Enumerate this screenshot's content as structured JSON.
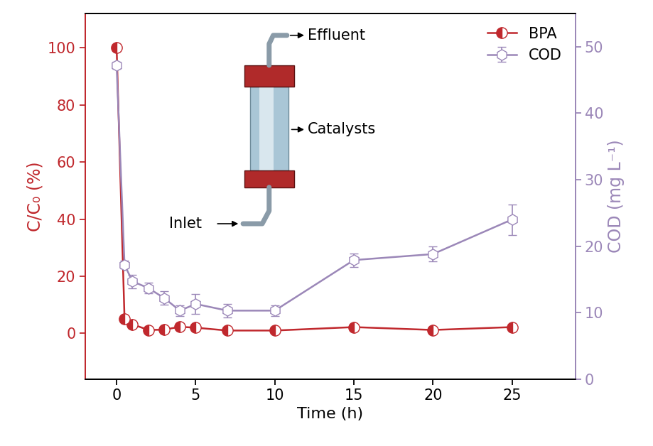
{
  "chart_data": {
    "type": "line",
    "x": [
      0,
      0.5,
      1,
      2,
      3,
      4,
      5,
      7,
      10,
      15,
      20,
      25
    ],
    "xlabel": "Time (h)",
    "ylabel": "C/C₀ (%)",
    "y2label": "COD (mg L⁻¹)",
    "xlim": [
      -2,
      29
    ],
    "xticks": [
      0,
      5,
      10,
      15,
      20,
      25
    ],
    "ylim": [
      -16,
      112
    ],
    "yticks": [
      0,
      20,
      40,
      60,
      80,
      100
    ],
    "y2lim": [
      0,
      55
    ],
    "y2ticks": [
      0,
      10,
      20,
      30,
      40,
      50
    ],
    "legend": "upper right",
    "annotations": [
      "Effluent",
      "Catalysts",
      "Inlet"
    ],
    "series": [
      {
        "name": "BPA",
        "color": "#c0282d",
        "marker": "circle",
        "line_style": "solid",
        "values": [
          100,
          5.0,
          3.2,
          1.2,
          1.3,
          2.3,
          2.0,
          1.0,
          1.0,
          2.2,
          1.2,
          2.2
        ]
      },
      {
        "name": "COD",
        "color": "#9b87b8",
        "marker": "hexagon",
        "line_style": "solid",
        "axis": "y2",
        "values": [
          47.2,
          17.2,
          14.7,
          13.7,
          12.2,
          10.3,
          11.3,
          10.3,
          10.3,
          17.9,
          18.8,
          24.0
        ],
        "errors": [
          0.5,
          0.6,
          1.0,
          0.8,
          1.0,
          0.8,
          1.5,
          1.0,
          0.8,
          1.0,
          1.1,
          2.3
        ]
      }
    ]
  }
}
